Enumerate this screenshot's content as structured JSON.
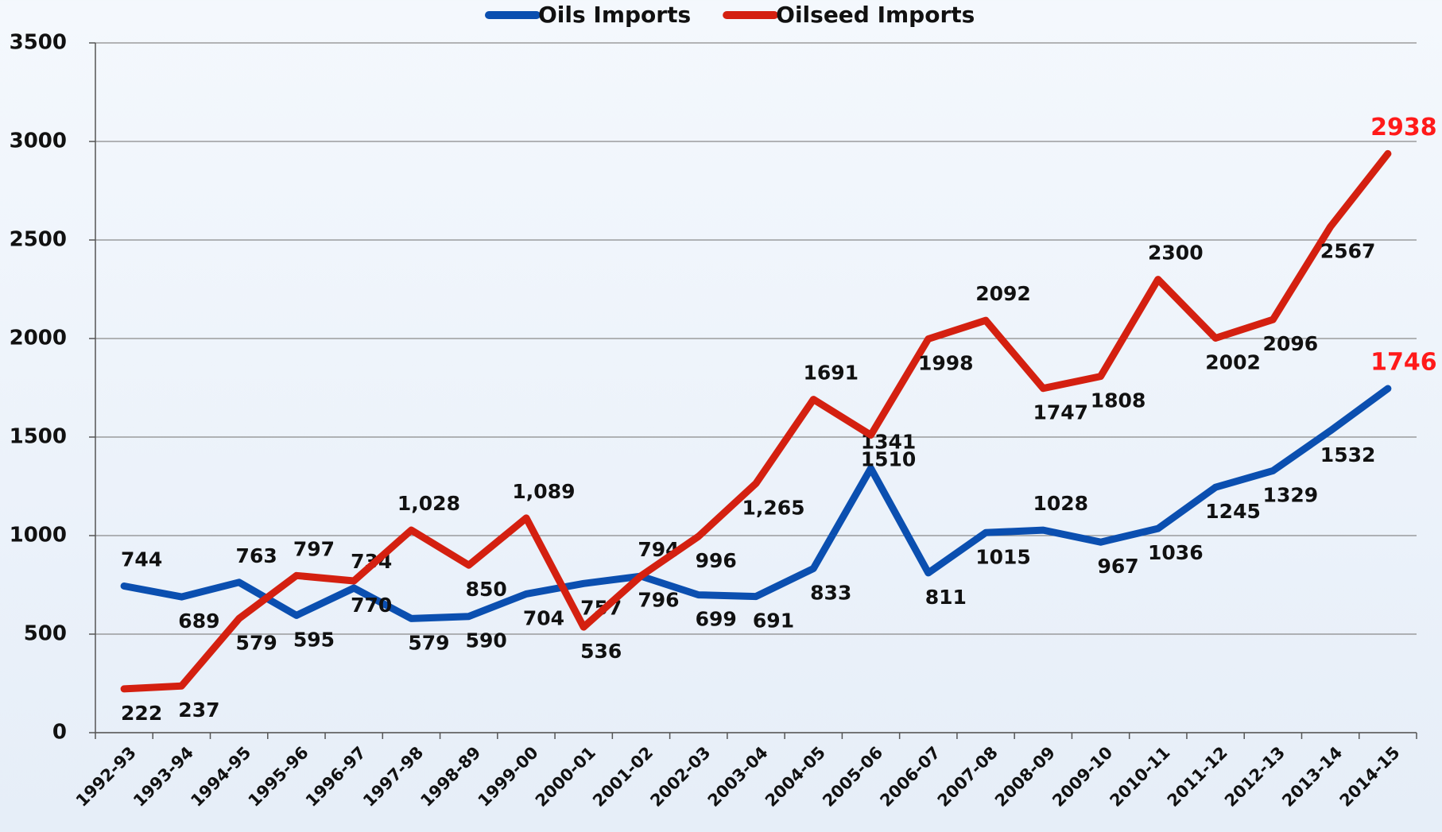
{
  "chart_data": {
    "type": "line",
    "categories": [
      "1992-93",
      "1993-94",
      "1994-95",
      "1995-96",
      "1996-97",
      "1997-98",
      "1998-89",
      "1999-00",
      "2000-01",
      "2001-02",
      "2002-03",
      "2003-04",
      "2004-05",
      "2005-06",
      "2006-07",
      "2007-08",
      "2008-09",
      "2009-10",
      "2010-11",
      "2011-12",
      "2012-13",
      "2013-14",
      "2014-15"
    ],
    "series": [
      {
        "name": "Oils Imports",
        "color": "#0b4fb0",
        "values": [
          744,
          689,
          763,
          595,
          734,
          579,
          590,
          704,
          757,
          794,
          699,
          691,
          833,
          1341,
          811,
          1015,
          1028,
          967,
          1036,
          1245,
          1329,
          1532,
          1746
        ]
      },
      {
        "name": "Oilseed Imports",
        "color": "#d42010",
        "values": [
          222,
          237,
          579,
          797,
          770,
          1028,
          850,
          1089,
          536,
          796,
          996,
          1265,
          1691,
          1510,
          1998,
          2092,
          1747,
          1808,
          2300,
          2002,
          2096,
          2567,
          2938
        ],
        "value_labels": [
          "222",
          "237",
          "579",
          "797",
          "770",
          "1,028",
          "850",
          "1,089",
          "536",
          "796",
          "996",
          "1,265",
          "1691",
          "1510",
          "1998",
          "2092",
          "1747",
          "1808",
          "2300",
          "2002",
          "2096",
          "2567",
          "2938"
        ]
      }
    ],
    "ylim": [
      0,
      3500
    ],
    "yticks": [
      0,
      500,
      1000,
      1500,
      2000,
      2500,
      3000,
      3500
    ],
    "grid": true,
    "legend": "top",
    "last_label_color": "#ff1a1a"
  }
}
